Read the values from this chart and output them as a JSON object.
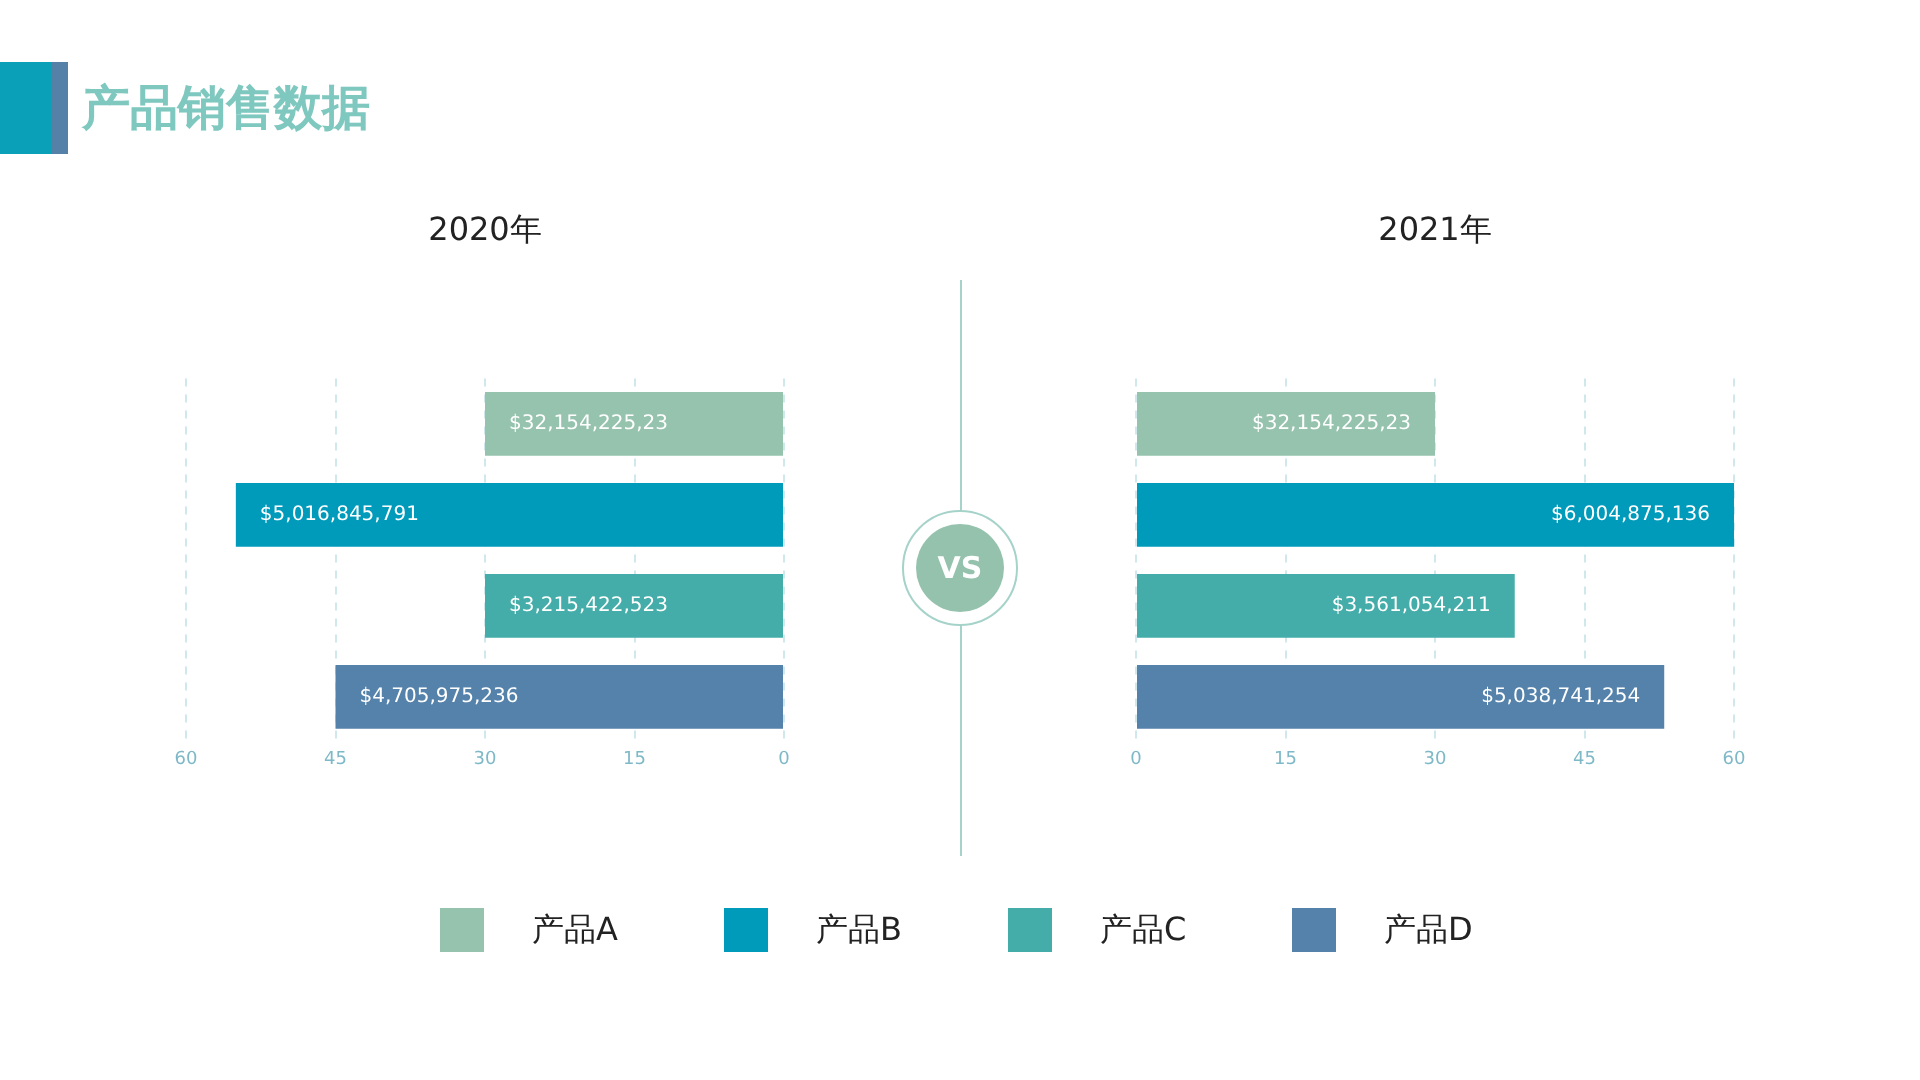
{
  "chart_data": [
    {
      "type": "other",
      "title": "产品销售数据"
    },
    {
      "type": "bar",
      "title": "2020年",
      "orientation": "horizontal",
      "categories": [
        null,
        null,
        null,
        null
      ],
      "series": [
        {
          "color": "#96c3ae",
          "values": [
            30,
            null,
            null,
            null
          ]
        },
        {
          "color": "#009bbb",
          "values": [
            null,
            55,
            null,
            null
          ]
        },
        {
          "color": "#44ada9",
          "values": [
            null,
            null,
            30,
            null
          ]
        },
        {
          "color": "#5582aa",
          "values": [
            null,
            null,
            null,
            45
          ]
        }
      ],
      "annotations": [
        "$32,154,225,23",
        "$5,016,845,791",
        "$3,215,422,523",
        "$4,705,975,236"
      ],
      "xlim": [
        60,
        0
      ],
      "xticks": [
        60,
        45,
        30,
        15,
        0
      ],
      "grid": "x",
      "legend": false
    },
    {
      "type": "other",
      "annotations": [
        "VS"
      ]
    },
    {
      "type": "bar",
      "title": "2021年",
      "orientation": "horizontal",
      "categories": [
        null,
        null,
        null,
        null
      ],
      "series": [
        {
          "name": "产品A",
          "color": "#96c3ae",
          "values": [
            30,
            null,
            null,
            null
          ]
        },
        {
          "name": "产品B",
          "color": "#009bbb",
          "values": [
            null,
            60,
            null,
            null
          ]
        },
        {
          "name": "产品C",
          "color": "#44ada9",
          "values": [
            null,
            null,
            38,
            null
          ]
        },
        {
          "name": "产品D",
          "color": "#5582aa",
          "values": [
            null,
            null,
            null,
            53
          ]
        }
      ],
      "annotations": [
        "$32,154,225,23",
        "$6,004,875,136",
        "$3,561,054,211",
        "$5,038,741,254"
      ],
      "xlim": [
        0,
        60
      ],
      "xticks": [
        0,
        15,
        30,
        45,
        60
      ],
      "grid": "x",
      "legend": "bottom"
    }
  ]
}
